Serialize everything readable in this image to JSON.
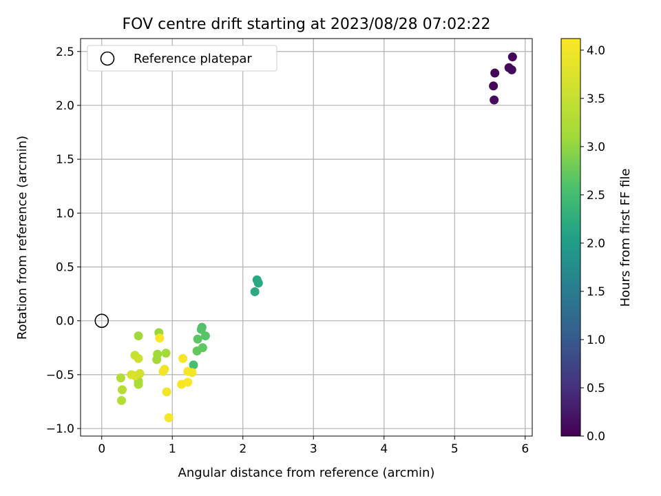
{
  "chart_data": {
    "type": "scatter",
    "title": "FOV centre drift starting at 2023/08/28 07:02:22",
    "xlabel": "Angular distance from reference (arcmin)",
    "ylabel": "Rotation from reference (arcmin)",
    "xlim": [
      -0.3,
      6.1
    ],
    "ylim": [
      -1.07,
      2.62
    ],
    "xticks": [
      0,
      1,
      2,
      3,
      4,
      5,
      6
    ],
    "xtick_labels": [
      "0",
      "1",
      "2",
      "3",
      "4",
      "5",
      "6"
    ],
    "yticks": [
      -1.0,
      -0.5,
      0.0,
      0.5,
      1.0,
      1.5,
      2.0,
      2.5
    ],
    "ytick_labels": [
      "−1.0",
      "−0.5",
      "0.0",
      "0.5",
      "1.0",
      "1.5",
      "2.0",
      "2.5"
    ],
    "grid": true,
    "legend": {
      "position": "top-left",
      "entries": [
        "Reference platepar"
      ]
    },
    "reference_point": {
      "x": 0,
      "y": 0
    },
    "colorbar": {
      "label": "Hours from first FF file",
      "colormap": "viridis",
      "range": [
        0.0,
        4.12
      ],
      "ticks": [
        0.0,
        0.5,
        1.0,
        1.5,
        2.0,
        2.5,
        3.0,
        3.5,
        4.0
      ],
      "tick_labels": [
        "0.0",
        "0.5",
        "1.0",
        "1.5",
        "2.0",
        "2.5",
        "3.0",
        "3.5",
        "4.0"
      ]
    },
    "points": [
      {
        "x": 5.82,
        "y": 2.45,
        "c": 0.05
      },
      {
        "x": 5.77,
        "y": 2.35,
        "c": 0.08
      },
      {
        "x": 5.81,
        "y": 2.33,
        "c": 0.1
      },
      {
        "x": 5.57,
        "y": 2.3,
        "c": 0.04
      },
      {
        "x": 5.55,
        "y": 2.18,
        "c": 0.06
      },
      {
        "x": 5.56,
        "y": 2.05,
        "c": 0.09
      },
      {
        "x": 2.2,
        "y": 0.38,
        "c": 2.15
      },
      {
        "x": 2.22,
        "y": 0.35,
        "c": 2.18
      },
      {
        "x": 2.17,
        "y": 0.27,
        "c": 2.2
      },
      {
        "x": 1.42,
        "y": -0.06,
        "c": 2.6
      },
      {
        "x": 1.41,
        "y": -0.08,
        "c": 2.62
      },
      {
        "x": 1.47,
        "y": -0.14,
        "c": 2.65
      },
      {
        "x": 1.36,
        "y": -0.17,
        "c": 2.68
      },
      {
        "x": 1.43,
        "y": -0.25,
        "c": 2.7
      },
      {
        "x": 1.35,
        "y": -0.28,
        "c": 2.72
      },
      {
        "x": 1.3,
        "y": -0.41,
        "c": 2.55
      },
      {
        "x": 0.52,
        "y": -0.14,
        "c": 3.1
      },
      {
        "x": 0.81,
        "y": -0.11,
        "c": 3.05
      },
      {
        "x": 0.79,
        "y": -0.31,
        "c": 3.1
      },
      {
        "x": 0.78,
        "y": -0.36,
        "c": 3.12
      },
      {
        "x": 0.91,
        "y": -0.3,
        "c": 3.15
      },
      {
        "x": 0.52,
        "y": -0.56,
        "c": 3.2
      },
      {
        "x": 0.52,
        "y": -0.59,
        "c": 3.22
      },
      {
        "x": 0.27,
        "y": -0.53,
        "c": 3.3
      },
      {
        "x": 0.29,
        "y": -0.64,
        "c": 3.35
      },
      {
        "x": 0.28,
        "y": -0.74,
        "c": 3.32
      },
      {
        "x": 0.47,
        "y": -0.32,
        "c": 3.55
      },
      {
        "x": 0.52,
        "y": -0.35,
        "c": 3.6
      },
      {
        "x": 0.42,
        "y": -0.5,
        "c": 3.7
      },
      {
        "x": 0.47,
        "y": -0.51,
        "c": 3.75
      },
      {
        "x": 0.54,
        "y": -0.49,
        "c": 3.65
      },
      {
        "x": 0.82,
        "y": -0.16,
        "c": 4.1
      },
      {
        "x": 0.89,
        "y": -0.45,
        "c": 3.95
      },
      {
        "x": 0.87,
        "y": -0.47,
        "c": 4.0
      },
      {
        "x": 1.15,
        "y": -0.35,
        "c": 4.05
      },
      {
        "x": 1.22,
        "y": -0.47,
        "c": 4.08
      },
      {
        "x": 1.28,
        "y": -0.48,
        "c": 4.02
      },
      {
        "x": 1.22,
        "y": -0.57,
        "c": 4.1
      },
      {
        "x": 1.13,
        "y": -0.59,
        "c": 4.06
      },
      {
        "x": 0.92,
        "y": -0.66,
        "c": 3.98
      },
      {
        "x": 0.95,
        "y": -0.9,
        "c": 4.03
      }
    ]
  }
}
